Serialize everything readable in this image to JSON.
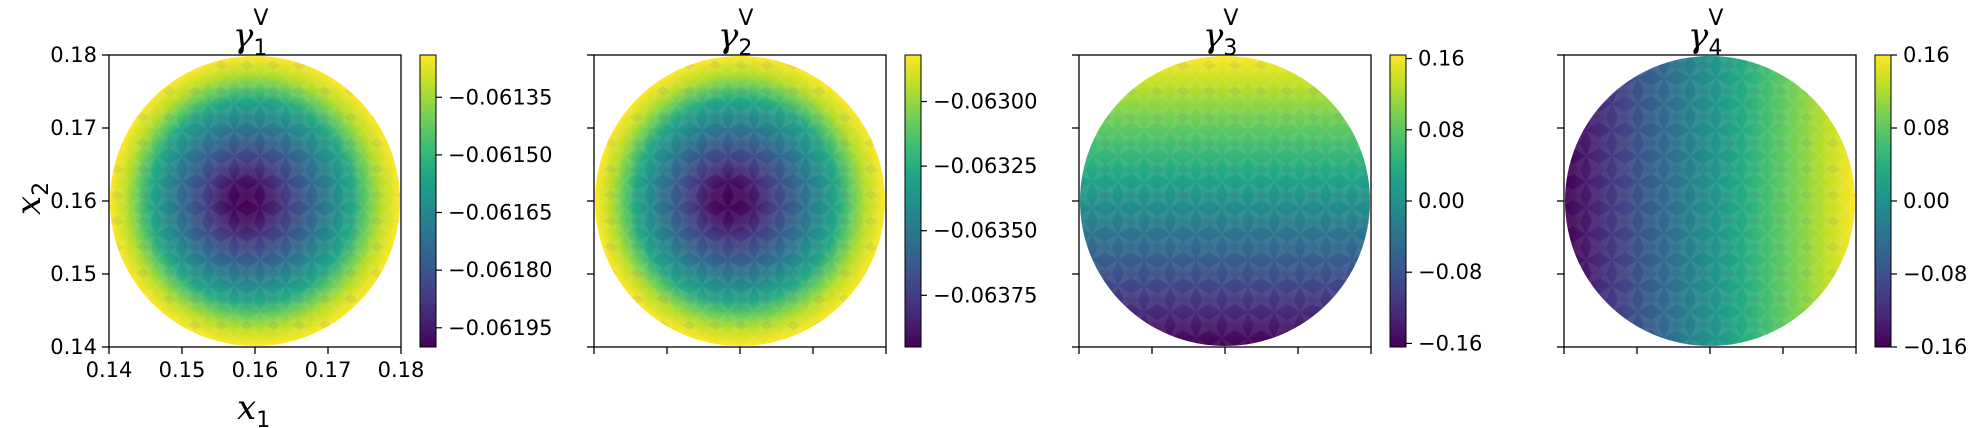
{
  "chart_data": [
    {
      "type": "heatmap",
      "title": "γ",
      "title_sub": "1",
      "title_sup": "V",
      "xlabel": "x",
      "xlabel_sub": "1",
      "ylabel": "x",
      "ylabel_sub": "2",
      "xlim": [
        0.14,
        0.18
      ],
      "ylim": [
        0.14,
        0.18
      ],
      "x_ticks": [
        "0.14",
        "0.15",
        "0.16",
        "0.17",
        "0.18"
      ],
      "y_ticks": [
        "0.14",
        "0.15",
        "0.16",
        "0.17",
        "0.18"
      ],
      "pattern": "radial",
      "domain": "disk",
      "colormap": "viridis",
      "color_range": [
        -0.062,
        -0.06124
      ],
      "colorbar_ticks": [
        -0.06135,
        -0.0615,
        -0.06165,
        -0.0618,
        -0.06195
      ],
      "colorbar_tick_labels": [
        "−0.06135",
        "−0.06150",
        "−0.06165",
        "−0.06180",
        "−0.06195"
      ]
    },
    {
      "type": "heatmap",
      "title": "γ",
      "title_sub": "2",
      "title_sup": "V",
      "xlim": [
        0.14,
        0.18
      ],
      "ylim": [
        0.14,
        0.18
      ],
      "pattern": "radial",
      "domain": "disk",
      "colormap": "viridis",
      "color_range": [
        -0.06395,
        -0.06282
      ],
      "colorbar_ticks": [
        -0.063,
        -0.06325,
        -0.0635,
        -0.06375
      ],
      "colorbar_tick_labels": [
        "−0.06300",
        "−0.06325",
        "−0.06350",
        "−0.06375"
      ]
    },
    {
      "type": "heatmap",
      "title": "γ",
      "title_sub": "3",
      "title_sup": "V",
      "xlim": [
        0.14,
        0.18
      ],
      "ylim": [
        0.14,
        0.18
      ],
      "pattern": "vertical",
      "domain": "disk",
      "colormap": "viridis",
      "color_range": [
        -0.164,
        0.164
      ],
      "colorbar_ticks": [
        0.16,
        0.08,
        0.0,
        -0.08,
        -0.16
      ],
      "colorbar_tick_labels": [
        "0.16",
        "0.08",
        "0.00",
        "−0.08",
        "−0.16"
      ]
    },
    {
      "type": "heatmap",
      "title": "γ",
      "title_sub": "4",
      "title_sup": "V",
      "xlim": [
        0.14,
        0.18
      ],
      "ylim": [
        0.14,
        0.18
      ],
      "pattern": "horizontal",
      "domain": "disk",
      "colormap": "viridis",
      "color_range": [
        -0.16,
        0.16
      ],
      "colorbar_ticks": [
        0.16,
        0.08,
        0.0,
        -0.08,
        -0.16
      ],
      "colorbar_tick_labels": [
        "0.16",
        "0.08",
        "0.00",
        "−0.08",
        "−0.16"
      ]
    }
  ]
}
